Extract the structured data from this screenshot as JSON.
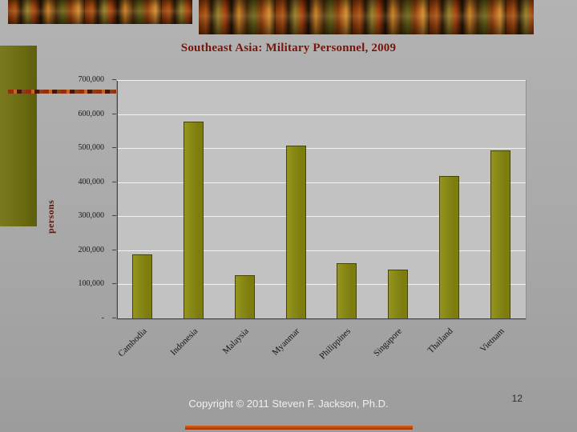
{
  "slide": {
    "title": "Southeast Asia: Military Personnel, 2009",
    "footer_copyright": "Copyright © 2011 Steven F. Jackson, Ph.D.",
    "page_number": "12"
  },
  "colors": {
    "slide_background": "#a8a8a8",
    "plot_background": "#c2c2c2",
    "gridline": "#f2f2f2",
    "bar_fill": "#7d7d0e",
    "bar_fill_light": "#94941e",
    "bar_border": "#45450a",
    "title_text": "#7b150a",
    "axis_text": "#1a1a1a",
    "axis_line": "#444444",
    "left_accent_bar": "#68680f",
    "bottom_strip_accent": "#cc5511",
    "footer_text": "#efefef"
  },
  "chart_data": {
    "type": "bar",
    "title": "Southeast Asia: Military Personnel, 2009",
    "ylabel": "persons",
    "xlabel": "",
    "categories": [
      "Cambodia",
      "Indonesia",
      "Malaysia",
      "Myanmar",
      "Philippines",
      "Singapore",
      "Thailand",
      "Vietnam"
    ],
    "values": [
      190000,
      580000,
      130000,
      510000,
      165000,
      145000,
      420000,
      495000
    ],
    "ylim": [
      0,
      700000
    ],
    "ytick_values": [
      0,
      100000,
      200000,
      300000,
      400000,
      500000,
      600000,
      700000
    ],
    "ytick_labels": [
      "-",
      "100,000",
      "200,000",
      "300,000",
      "400,000",
      "500,000",
      "600,000",
      "700,000"
    ],
    "grid": true,
    "legend": false
  }
}
